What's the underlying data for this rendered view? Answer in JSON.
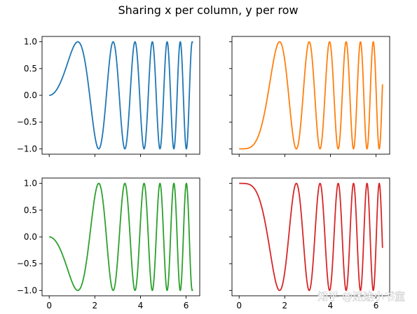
{
  "figure": {
    "suptitle": "Sharing x per column, y per row",
    "watermark": "知乎 @迷途小书童"
  },
  "chart_data": [
    {
      "type": "line",
      "position": "top-left",
      "function": "sin(x^2)",
      "x": [
        0,
        6.283
      ],
      "xlim": [
        -0.314,
        6.597
      ],
      "ylim": [
        -1.1,
        1.1
      ],
      "xticks": [
        0,
        2,
        4,
        6
      ],
      "yticks": [
        -1.0,
        -0.5,
        0.0,
        0.5,
        1.0
      ],
      "ytick_labels": [
        "−1.0",
        "−0.5",
        "0.0",
        "0.5",
        "1.0"
      ],
      "show_xtick_labels": false,
      "show_ytick_labels": true,
      "series": [
        {
          "color": "#1f77b4"
        }
      ]
    },
    {
      "type": "line",
      "position": "top-right",
      "function": "-cos(x^2)",
      "x": [
        0,
        6.283
      ],
      "xlim": [
        -0.314,
        6.597
      ],
      "ylim": [
        -1.1,
        1.1
      ],
      "xticks": [
        0,
        2,
        4,
        6
      ],
      "yticks": [
        -1.0,
        -0.5,
        0.0,
        0.5,
        1.0
      ],
      "show_xtick_labels": false,
      "show_ytick_labels": false,
      "series": [
        {
          "color": "#ff7f0e"
        }
      ]
    },
    {
      "type": "line",
      "position": "bottom-left",
      "function": "-sin(x^2)",
      "x": [
        0,
        6.283
      ],
      "xlim": [
        -0.314,
        6.597
      ],
      "ylim": [
        -1.1,
        1.1
      ],
      "xticks": [
        0,
        2,
        4,
        6
      ],
      "xtick_labels": [
        "0",
        "2",
        "4",
        "6"
      ],
      "yticks": [
        -1.0,
        -0.5,
        0.0,
        0.5,
        1.0
      ],
      "ytick_labels": [
        "−1.0",
        "−0.5",
        "0.0",
        "0.5",
        "1.0"
      ],
      "show_xtick_labels": true,
      "show_ytick_labels": true,
      "series": [
        {
          "color": "#2ca02c"
        }
      ]
    },
    {
      "type": "line",
      "position": "bottom-right",
      "function": "cos(x^2)",
      "x": [
        0,
        6.283
      ],
      "xlim": [
        -0.314,
        6.597
      ],
      "ylim": [
        -1.1,
        1.1
      ],
      "xticks": [
        0,
        2,
        4,
        6
      ],
      "xtick_labels": [
        "0",
        "2",
        "4",
        "6"
      ],
      "yticks": [
        -1.0,
        -0.5,
        0.0,
        0.5,
        1.0
      ],
      "show_xtick_labels": true,
      "show_ytick_labels": false,
      "series": [
        {
          "color": "#d62728"
        }
      ]
    }
  ]
}
